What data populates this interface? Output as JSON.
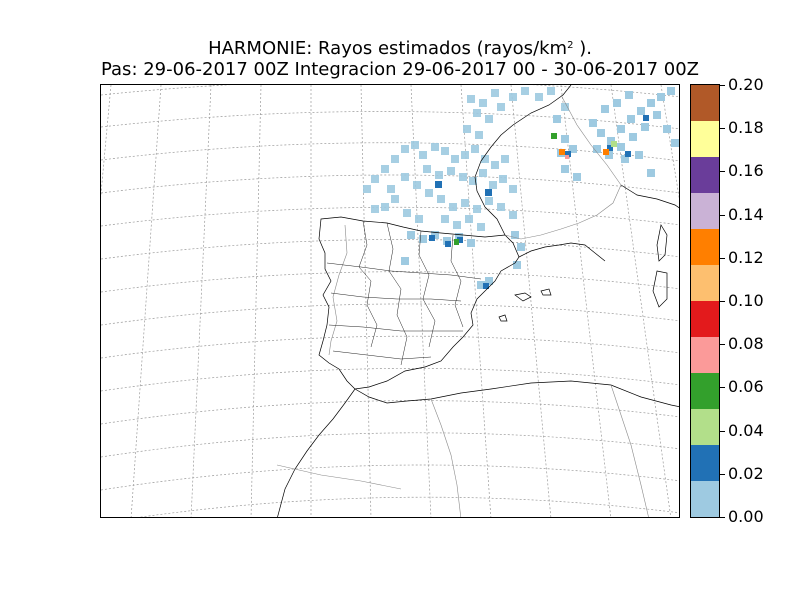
{
  "title": {
    "line1_prefix": "HARMONIE: Rayos estimados  (rayos/km",
    "line1_sup": "2",
    "line1_suffix": " ).",
    "line2": "Pas: 29-06-2017 00Z Integracion 29-06-2017 00 - 30-06-2017 00Z"
  },
  "colorbar": {
    "ticks": [
      "0.00",
      "0.02",
      "0.04",
      "0.06",
      "0.08",
      "0.10",
      "0.12",
      "0.14",
      "0.16",
      "0.18",
      "0.20"
    ],
    "range": [
      0.0,
      0.2
    ],
    "colors": [
      "#9ecae1",
      "#2171b5",
      "#b2df8a",
      "#33a02c",
      "#fb9a99",
      "#e31a1c",
      "#fdbf6f",
      "#ff7f00",
      "#cab2d6",
      "#6a3d9a",
      "#ffff99",
      "#b15928"
    ]
  },
  "map": {
    "region": "Iberian Peninsula, western Europe, north-west Africa",
    "features": [
      "graticule-dashed",
      "coastlines",
      "country-borders",
      "spanish-province-borders"
    ],
    "precip_clusters": [
      {
        "area": "Bay of Biscay / north-east Atlantic",
        "level": "0.00-0.02"
      },
      {
        "area": "North of Spain (Cantabria, Basque Country, Navarra)",
        "level": "0.00-0.06"
      },
      {
        "area": "Catalonia / Valencia coast",
        "level": "0.00-0.02"
      },
      {
        "area": "France / central Europe",
        "level": "0.00-0.12"
      }
    ]
  }
}
